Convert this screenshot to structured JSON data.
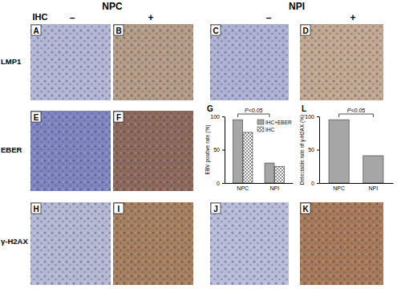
{
  "header": {
    "ihc": "IHC",
    "groups": [
      {
        "name": "NPC",
        "negative": "–",
        "positive": "+"
      },
      {
        "name": "NPI",
        "negative": "–",
        "positive": "+"
      }
    ]
  },
  "rows": [
    "LMP1",
    "EBER",
    "γ-H2AX"
  ],
  "panels": [
    {
      "label": "A",
      "color": "#b3b6d4"
    },
    {
      "label": "B",
      "color": "#b49c86"
    },
    {
      "label": "C",
      "color": "#aeb2d2"
    },
    {
      "label": "D",
      "color": "#c2a890"
    },
    {
      "label": "E",
      "color": "#7f86bf"
    },
    {
      "label": "F",
      "color": "#8d6a5c"
    },
    {
      "label": "H",
      "color": "#b5b8d2"
    },
    {
      "label": "I",
      "color": "#a6805f"
    },
    {
      "label": "J",
      "color": "#b9bcd8"
    },
    {
      "label": "K",
      "color": "#a77a5a"
    }
  ],
  "chart_data": [
    {
      "type": "bar",
      "title": "G",
      "y_label": "EBV positive rate (%)",
      "categories": [
        "NPC",
        "NPI"
      ],
      "series": [
        {
          "name": "IHC+EBER",
          "color": "#a6a6a6",
          "values": [
            95,
            30
          ]
        },
        {
          "name": "IHC",
          "color": "#444444",
          "marker": "crosshatch",
          "values": [
            76,
            25
          ]
        }
      ],
      "ylim": [
        0,
        100
      ],
      "yticks": [
        0,
        50,
        100
      ],
      "legend": "upper right",
      "annotations": [
        "P<0.05"
      ]
    },
    {
      "type": "bar",
      "title": "L",
      "y_label": "Detectable rate of γ-H2AX (%)",
      "categories": [
        "NPC",
        "NPI"
      ],
      "values": [
        95,
        41
      ],
      "color": "#a6a6a6",
      "ylim": [
        0,
        100
      ],
      "yticks": [
        0,
        50,
        100
      ],
      "annotations": [
        "P<0.05"
      ]
    }
  ]
}
